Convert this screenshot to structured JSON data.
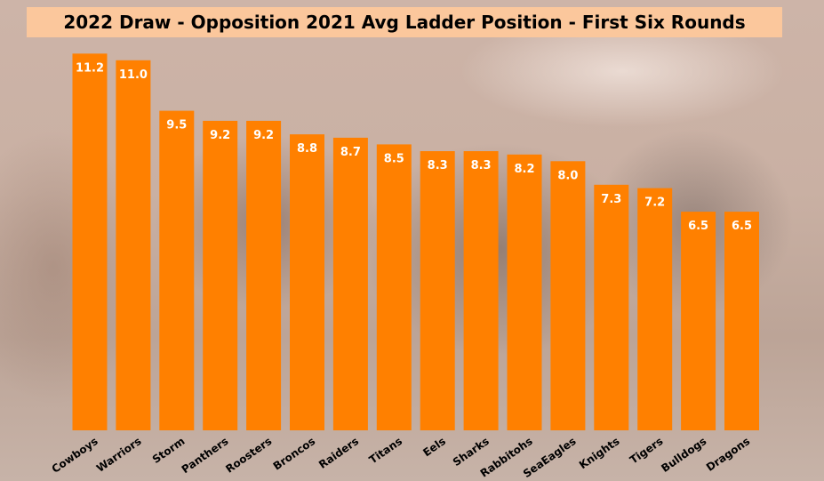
{
  "chart_data": {
    "type": "bar",
    "title": "2022 Draw - Opposition 2021 Avg Ladder Position - First Six Rounds",
    "xlabel": "",
    "ylabel": "",
    "ylim": [
      0,
      12
    ],
    "grid": false,
    "categories": [
      "Cowboys",
      "Warriors",
      "Storm",
      "Panthers",
      "Roosters",
      "Broncos",
      "Raiders",
      "Titans",
      "Eels",
      "Sharks",
      "Rabbitohs",
      "SeaEagles",
      "Knights",
      "Tigers",
      "Bulldogs",
      "Dragons"
    ],
    "values": [
      11.2,
      11.0,
      9.5,
      9.2,
      9.2,
      8.8,
      8.7,
      8.5,
      8.3,
      8.3,
      8.2,
      8.0,
      7.3,
      7.2,
      6.5,
      6.5
    ],
    "value_labels": [
      "11.2",
      "11.0",
      "9.5",
      "9.2",
      "9.2",
      "8.8",
      "8.7",
      "8.5",
      "8.3",
      "8.3",
      "8.2",
      "8.0",
      "7.3",
      "7.2",
      "6.5",
      "6.5"
    ],
    "bar_color": "#ff8000",
    "title_background": "#fbc79c"
  }
}
